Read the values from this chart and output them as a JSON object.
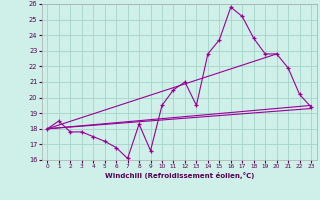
{
  "xlabel": "Windchill (Refroidissement éolien,°C)",
  "background_color": "#cff0e8",
  "grid_color": "#aad8cc",
  "line_color": "#990099",
  "xlim": [
    -0.5,
    23.5
  ],
  "ylim": [
    16,
    26
  ],
  "xticks": [
    0,
    1,
    2,
    3,
    4,
    5,
    6,
    7,
    8,
    9,
    10,
    11,
    12,
    13,
    14,
    15,
    16,
    17,
    18,
    19,
    20,
    21,
    22,
    23
  ],
  "yticks": [
    16,
    17,
    18,
    19,
    20,
    21,
    22,
    23,
    24,
    25,
    26
  ],
  "line1_x": [
    0,
    1,
    2,
    3,
    4,
    5,
    6,
    7,
    8,
    9,
    10,
    11,
    12,
    13,
    14,
    15,
    16,
    17,
    18,
    19,
    20,
    21,
    22,
    23
  ],
  "line1_y": [
    18.0,
    18.5,
    17.8,
    17.8,
    17.5,
    17.2,
    16.8,
    16.1,
    18.3,
    16.6,
    19.5,
    20.5,
    21.0,
    19.5,
    22.8,
    23.7,
    25.8,
    25.2,
    23.8,
    22.8,
    22.8,
    21.9,
    20.2,
    19.4
  ],
  "line2_x": [
    0,
    23
  ],
  "line2_y": [
    18.0,
    19.3
  ],
  "line3_x": [
    0,
    20
  ],
  "line3_y": [
    18.0,
    22.8
  ],
  "line4_x": [
    0,
    23
  ],
  "line4_y": [
    18.0,
    19.5
  ],
  "lw": 0.8,
  "ms": 2.5
}
